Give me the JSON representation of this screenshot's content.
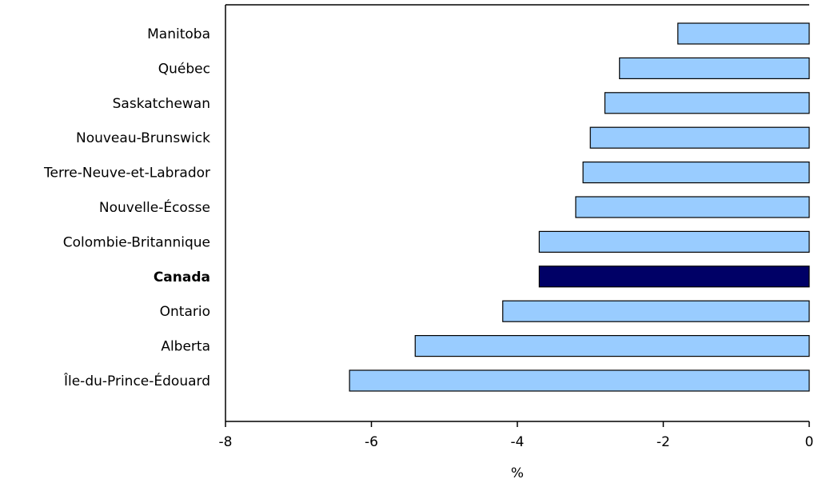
{
  "chart_data": {
    "type": "bar",
    "orientation": "horizontal",
    "categories": [
      "Manitoba",
      "Québec",
      "Saskatchewan",
      "Nouveau-Brunswick",
      "Terre-Neuve-et-Labrador",
      "Nouvelle-Écosse",
      "Colombie-Britannique",
      "Canada",
      "Ontario",
      "Alberta",
      "Île-du-Prince-Édouard"
    ],
    "values": [
      -1.8,
      -2.6,
      -2.8,
      -3.0,
      -3.1,
      -3.2,
      -3.7,
      -3.7,
      -4.2,
      -5.4,
      -6.3
    ],
    "highlight_category": "Canada",
    "xlabel": "%",
    "ylabel": "",
    "xlim": [
      -8,
      0
    ],
    "xticks": [
      -8,
      -6,
      -4,
      -2,
      0
    ],
    "xtick_labels": [
      "-8",
      "-6",
      "-4",
      "-2",
      "0"
    ],
    "grid": false,
    "legend": "none",
    "colors": {
      "bar": "#99ccff",
      "highlight": "#000066",
      "stroke": "#000000",
      "axis": "#000000"
    }
  }
}
